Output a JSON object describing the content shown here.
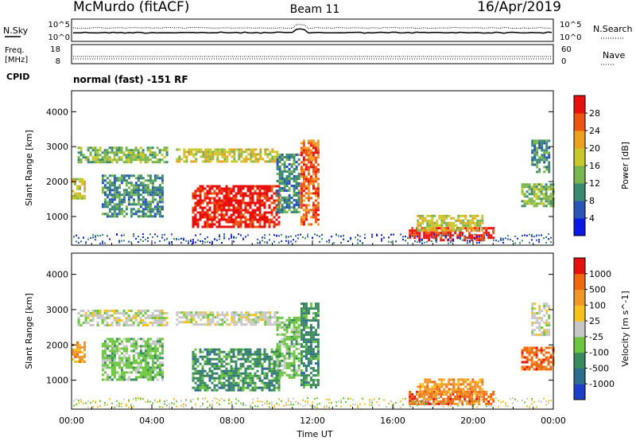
{
  "header": {
    "station": "McMurdo (fitACF)",
    "beam": "Beam 11",
    "date": "16/Apr/2019"
  },
  "top_panels": {
    "noise": {
      "left_label": "N.Sky",
      "right_label": "N.Search",
      "left_ticks": [
        "10^5",
        "10^0"
      ],
      "right_ticks": [
        "10^5",
        "10^0"
      ]
    },
    "freq": {
      "left_label_1": "Freq.",
      "left_label_2": "[MHz]",
      "left_ticks": [
        "18",
        "8"
      ],
      "right_label": "Nave",
      "right_ticks": [
        "60",
        "0"
      ]
    },
    "cpid": {
      "label": "CPID",
      "value": "normal (fast) -151 RF"
    }
  },
  "x_axis": {
    "ticks": [
      "00:00",
      "04:00",
      "08:00",
      "12:00",
      "16:00",
      "20:00",
      "00:00"
    ],
    "label": "Time UT"
  },
  "chart_data": [
    {
      "type": "heatmap",
      "title": "",
      "xlabel": "Time UT",
      "ylabel": "Slant Range [km]",
      "xlim": [
        0,
        24
      ],
      "ylim": [
        180,
        4600
      ],
      "y_ticks": [
        1000,
        2000,
        3000,
        4000
      ],
      "colorbar": {
        "label": "Power [dB]",
        "tick_labels": [
          "4",
          "8",
          "12",
          "16",
          "20",
          "24",
          "28"
        ],
        "range": [
          0,
          32
        ],
        "colors": [
          "#0a19e6",
          "#2a55b8",
          "#3a8a72",
          "#79b54d",
          "#c8c82a",
          "#ef9f1e",
          "#ec5512",
          "#e8100c"
        ]
      },
      "regions": [
        {
          "t0": 0.0,
          "t1": 0.6,
          "r0": 1500,
          "r1": 2100,
          "v": 14
        },
        {
          "t0": 0.3,
          "t1": 4.8,
          "r0": 2550,
          "r1": 3000,
          "v": 12
        },
        {
          "t0": 5.2,
          "t1": 10.2,
          "r0": 2600,
          "r1": 2950,
          "v": 15
        },
        {
          "t0": 1.5,
          "t1": 4.5,
          "r0": 1000,
          "r1": 2200,
          "v": 6
        },
        {
          "t0": 6.0,
          "t1": 10.3,
          "r0": 700,
          "r1": 1900,
          "v": 28
        },
        {
          "t0": 10.2,
          "t1": 11.3,
          "r0": 1100,
          "r1": 2800,
          "v": 9
        },
        {
          "t0": 11.4,
          "t1": 12.3,
          "r0": 800,
          "r1": 3200,
          "v": 25
        },
        {
          "t0": 16.8,
          "t1": 21.0,
          "r0": 350,
          "r1": 700,
          "v": 28
        },
        {
          "t0": 17.2,
          "t1": 20.5,
          "r0": 600,
          "r1": 1050,
          "v": 14
        },
        {
          "t0": 22.4,
          "t1": 24.0,
          "r0": 1300,
          "r1": 1950,
          "v": 13
        },
        {
          "t0": 22.9,
          "t1": 23.8,
          "r0": 2300,
          "r1": 3200,
          "v": 9
        }
      ]
    },
    {
      "type": "heatmap",
      "title": "",
      "xlabel": "Time UT",
      "ylabel": "Slant Range [km]",
      "xlim": [
        0,
        24
      ],
      "ylim": [
        180,
        4600
      ],
      "y_ticks": [
        1000,
        2000,
        3000,
        4000
      ],
      "colorbar": {
        "label": "Velocity [m s^-1]",
        "tick_labels": [
          "1000",
          "500",
          "100",
          "25",
          "-25",
          "-100",
          "-500",
          "-1000"
        ],
        "colors": [
          "#1a3fc8",
          "#2d6e8f",
          "#3a8a5c",
          "#6cc63e",
          "#c7c7c7",
          "#f5c21c",
          "#f2962a",
          "#ee6a10",
          "#e8100c"
        ]
      },
      "regions": [
        {
          "t0": 0.0,
          "t1": 0.6,
          "r0": 1500,
          "r1": 2100,
          "v": 6
        },
        {
          "t0": 0.3,
          "t1": 4.8,
          "r0": 2550,
          "r1": 3000,
          "v": 4
        },
        {
          "t0": 5.2,
          "t1": 10.2,
          "r0": 2600,
          "r1": 2950,
          "v": 4
        },
        {
          "t0": 1.5,
          "t1": 4.5,
          "r0": 1000,
          "r1": 2200,
          "v": 3
        },
        {
          "t0": 6.0,
          "t1": 10.3,
          "r0": 700,
          "r1": 1900,
          "v": 2
        },
        {
          "t0": 10.2,
          "t1": 11.3,
          "r0": 1100,
          "r1": 2800,
          "v": 3
        },
        {
          "t0": 11.4,
          "t1": 12.3,
          "r0": 800,
          "r1": 3200,
          "v": 2
        },
        {
          "t0": 16.8,
          "t1": 21.0,
          "r0": 350,
          "r1": 700,
          "v": 7
        },
        {
          "t0": 17.2,
          "t1": 20.5,
          "r0": 600,
          "r1": 1050,
          "v": 6
        },
        {
          "t0": 22.4,
          "t1": 24.0,
          "r0": 1300,
          "r1": 1950,
          "v": 7
        },
        {
          "t0": 22.9,
          "t1": 23.8,
          "r0": 2300,
          "r1": 3200,
          "v": 4
        }
      ]
    }
  ]
}
